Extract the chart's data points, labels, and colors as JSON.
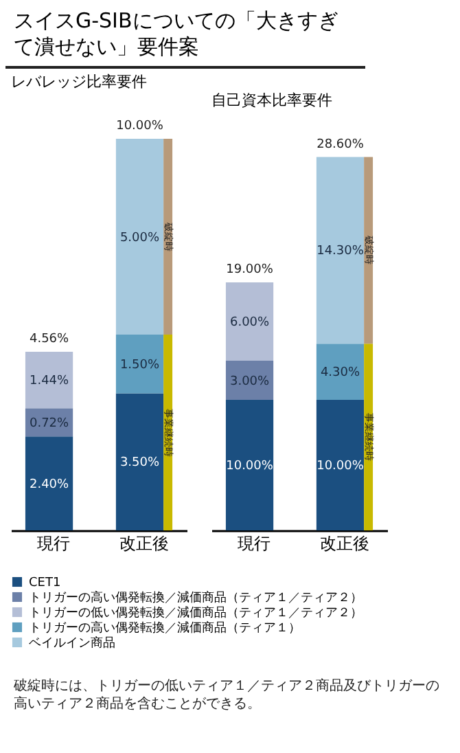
{
  "chart_data": [
    {
      "type": "bar",
      "title": "スイスG-SIBについての「大きすぎて潰せない」要件案",
      "subtitle": "レバレッジ比率要件",
      "categories": [
        "現行",
        "改正後"
      ],
      "stacked": true,
      "tick_labels": "x",
      "legend": "bottom",
      "series": [
        {
          "name": "CET1",
          "color": "#1b4f80",
          "values": [
            2.4,
            3.5
          ],
          "value_labels": [
            "2.40%",
            "3.50%"
          ]
        },
        {
          "name": "トリガーの高い偶発転換／減価商品（ティア１／ティア２）",
          "color": "#6c80a8",
          "values": [
            0.72,
            null
          ],
          "value_labels": [
            "0.72%",
            null
          ]
        },
        {
          "name": "トリガーの低い偶発転換／減価商品（ティア１／ティア２）",
          "color": "#b4bed6",
          "values": [
            1.44,
            null
          ],
          "value_labels": [
            "1.44%",
            null
          ]
        },
        {
          "name": "トリガーの高い偶発転換／減価商品（ティア１）",
          "color": "#5f9fc0",
          "values": [
            null,
            1.5
          ],
          "value_labels": [
            null,
            "1.50%"
          ]
        },
        {
          "name": "ベイルイン商品",
          "color": "#a6c9de",
          "values": [
            null,
            5.0
          ],
          "value_labels": [
            null,
            "5.00%"
          ]
        }
      ],
      "totals": [
        "4.56%",
        "10.00%"
      ],
      "bands": [
        {
          "axis": "y",
          "from": 0,
          "to": 5,
          "label": "事業継続時",
          "color": "#c8b900"
        },
        {
          "axis": "y",
          "from": 5,
          "to": 10,
          "label": "破綻時",
          "color": "#b89a7a"
        }
      ]
    },
    {
      "type": "bar",
      "subtitle": "自己資本比率要件",
      "categories": [
        "現行",
        "改正後"
      ],
      "stacked": true,
      "tick_labels": "x",
      "legend": "bottom",
      "series": [
        {
          "name": "CET1",
          "color": "#1b4f80",
          "values": [
            10.0,
            10.0
          ],
          "value_labels": [
            "10.00%",
            "10.00%"
          ]
        },
        {
          "name": "トリガーの高い偶発転換／減価商品（ティア１／ティア２）",
          "color": "#6c80a8",
          "values": [
            3.0,
            null
          ],
          "value_labels": [
            "3.00%",
            null
          ]
        },
        {
          "name": "トリガーの低い偶発転換／減価商品（ティア１／ティア２）",
          "color": "#b4bed6",
          "values": [
            6.0,
            null
          ],
          "value_labels": [
            "6.00%",
            null
          ]
        },
        {
          "name": "トリガーの高い偶発転換／減価商品（ティア１）",
          "color": "#5f9fc0",
          "values": [
            null,
            4.3
          ],
          "value_labels": [
            null,
            "4.30%"
          ]
        },
        {
          "name": "ベイルイン商品",
          "color": "#a6c9de",
          "values": [
            null,
            14.3
          ],
          "value_labels": [
            null,
            "14.30%"
          ]
        }
      ],
      "totals": [
        "19.00%",
        "28.60%"
      ],
      "bands": [
        {
          "axis": "y",
          "from": 0,
          "to": 14.3,
          "label": "事業継続時",
          "color": "#c8b900"
        },
        {
          "axis": "y",
          "from": 14.3,
          "to": 28.6,
          "label": "破綻時",
          "color": "#b89a7a"
        }
      ],
      "annotations": [
        "破綻時には、トリガーの低いティア１／ティア２商品及びトリガーの高いティア２商品を含むことができる。"
      ]
    }
  ]
}
